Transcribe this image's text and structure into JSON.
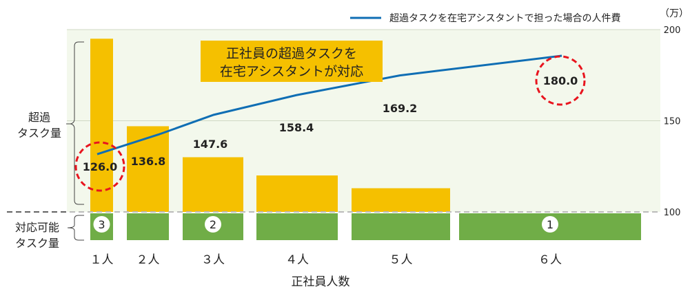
{
  "chart_data": {
    "type": "bar",
    "categories": [
      "１人",
      "２人",
      "３人",
      "４人",
      "５人",
      "６人"
    ],
    "xlabel": "正社員人数",
    "unit": "（万）",
    "ylim": [
      100,
      200
    ],
    "yticks": [
      100,
      150,
      200
    ],
    "grid": true,
    "overflow_bars": {
      "label": "超過\nタスク量",
      "values": [
        195,
        147,
        130,
        120,
        113,
        100
      ],
      "color": "#F5C000"
    },
    "capacity_bars": {
      "label": "対応可能\nタスク量",
      "color": "#70AD47"
    },
    "rank_markers": [
      {
        "category": "１人",
        "text": "3"
      },
      {
        "category": "３人",
        "text": "2"
      },
      {
        "category": "６人",
        "text": "1"
      }
    ],
    "series": [
      {
        "name": "超過タスクを在宅アシスタントで担った場合の人件費",
        "values": [
          126.0,
          136.8,
          147.6,
          158.4,
          169.2,
          180.0
        ],
        "labels": [
          "126.0",
          "136.8",
          "147.6",
          "158.4",
          "169.2",
          "180.0"
        ],
        "color": "#0F6EB4"
      }
    ],
    "highlighted_points": [
      "126.0",
      "180.0"
    ],
    "legend": "top-right",
    "annotation": [
      "正社員の超過タスクを",
      "在宅アシスタントが対応"
    ],
    "left_labels": {
      "overflow": [
        "超過",
        "タスク量"
      ],
      "capacity": [
        "対応可能",
        "タスク量"
      ]
    }
  }
}
